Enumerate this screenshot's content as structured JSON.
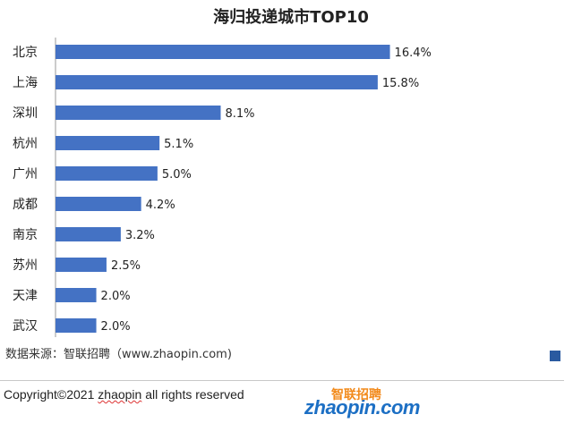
{
  "chart_data": {
    "type": "bar",
    "orientation": "horizontal",
    "title": "海归投递城市TOP10",
    "categories": [
      "北京",
      "上海",
      "深圳",
      "杭州",
      "广州",
      "成都",
      "南京",
      "苏州",
      "天津",
      "武汉"
    ],
    "values": [
      16.4,
      15.8,
      8.1,
      5.1,
      5.0,
      4.2,
      3.2,
      2.5,
      2.0,
      2.0
    ],
    "value_labels": [
      "16.4%",
      "15.8%",
      "8.1%",
      "5.1%",
      "5.0%",
      "4.2%",
      "3.2%",
      "2.5%",
      "2.0%",
      "2.0%"
    ],
    "xlim": [
      0,
      18
    ],
    "bar_color": "#4472c4",
    "grid": false,
    "legend": "none"
  },
  "source": "数据来源：智联招聘（www.zhaopin.com)",
  "footer": {
    "copyright_prefix": "Copyright©2021 ",
    "copyright_brand": "zhaopin",
    "copyright_suffix": " all rights reserved",
    "logo_en": "zhaopin.com",
    "logo_cn": "智联招聘"
  }
}
